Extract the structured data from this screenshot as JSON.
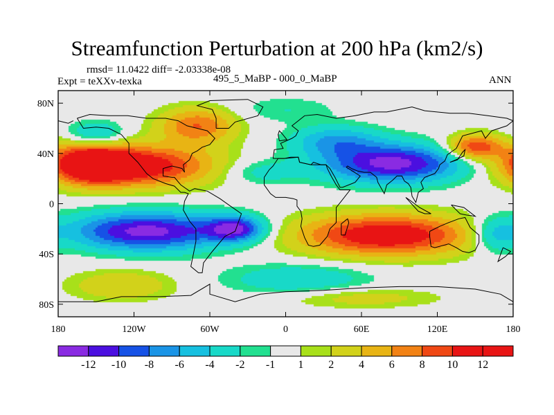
{
  "title": "Streamfunction Perturbation at 200 hPa (km2/s)",
  "stats": "rmsd= 11.0422 diff= -2.03338e-08",
  "experiment": "Expt = teXXv-texka",
  "period": "495_5_MaBP - 000_0_MaBP",
  "season": "ANN",
  "map": {
    "lat_ticks": [
      {
        "value": 80,
        "label": "80N"
      },
      {
        "value": 40,
        "label": "40N"
      },
      {
        "value": 0,
        "label": "0"
      },
      {
        "value": -40,
        "label": "40S"
      },
      {
        "value": -80,
        "label": "80S"
      }
    ],
    "lon_ticks": [
      {
        "value": -180,
        "label": "180"
      },
      {
        "value": -120,
        "label": "120W"
      },
      {
        "value": -60,
        "label": "60W"
      },
      {
        "value": 0,
        "label": "0"
      },
      {
        "value": 60,
        "label": "60E"
      },
      {
        "value": 120,
        "label": "120E"
      },
      {
        "value": 180,
        "label": "180"
      }
    ],
    "lon_range": [
      -180,
      180
    ],
    "lat_range": [
      -90,
      90
    ]
  },
  "colorbar": {
    "levels": [
      "-12",
      "-10",
      "-8",
      "-6",
      "-4",
      "-2",
      "-1",
      "1",
      "2",
      "4",
      "6",
      "8",
      "10",
      "12"
    ],
    "colors": [
      "#8a2be2",
      "#4b0fe0",
      "#1652e6",
      "#1a94e6",
      "#16c0e0",
      "#18d9c8",
      "#22e090",
      "#e8e8e8",
      "#a8e01a",
      "#d2d21a",
      "#e8b414",
      "#f28214",
      "#f04814",
      "#e81414"
    ]
  },
  "field_blobs": [
    {
      "lon": -120,
      "lat": 30,
      "rx": 60,
      "ry": 16,
      "value": 13
    },
    {
      "lon": -155,
      "lat": 32,
      "rx": 28,
      "ry": 15,
      "value": 11
    },
    {
      "lon": -70,
      "lat": 62,
      "rx": 30,
      "ry": 14,
      "value": 8
    },
    {
      "lon": -110,
      "lat": -22,
      "rx": 62,
      "ry": 15,
      "value": -13
    },
    {
      "lon": -40,
      "lat": -20,
      "rx": 22,
      "ry": 10,
      "value": -11
    },
    {
      "lon": 85,
      "lat": 32,
      "rx": 55,
      "ry": 15,
      "value": -13
    },
    {
      "lon": 40,
      "lat": 50,
      "rx": 35,
      "ry": 12,
      "value": -6
    },
    {
      "lon": -20,
      "lat": 25,
      "rx": 30,
      "ry": 10,
      "value": -3
    },
    {
      "lon": 80,
      "lat": -25,
      "rx": 68,
      "ry": 16,
      "value": 13
    },
    {
      "lon": 150,
      "lat": 45,
      "rx": 22,
      "ry": 10,
      "value": 10
    },
    {
      "lon": -150,
      "lat": 55,
      "rx": 22,
      "ry": 10,
      "value": -5
    },
    {
      "lon": 10,
      "lat": -60,
      "rx": 55,
      "ry": 12,
      "value": -4
    },
    {
      "lon": 165,
      "lat": -25,
      "rx": 18,
      "ry": 14,
      "value": -5
    },
    {
      "lon": -130,
      "lat": -65,
      "rx": 40,
      "ry": 12,
      "value": 4
    },
    {
      "lon": 0,
      "lat": 75,
      "rx": 40,
      "ry": 10,
      "value": -2
    },
    {
      "lon": 60,
      "lat": -75,
      "rx": 60,
      "ry": 8,
      "value": 3
    }
  ]
}
